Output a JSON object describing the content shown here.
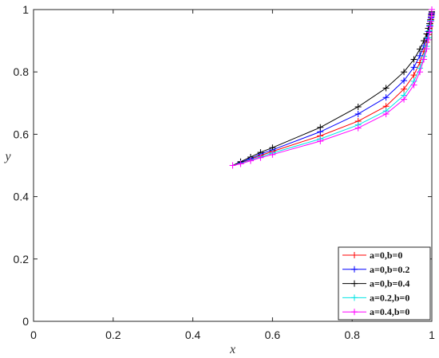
{
  "chart_data": {
    "type": "line",
    "xlabel": "x",
    "ylabel": "y",
    "xlim": [
      0,
      1
    ],
    "ylim": [
      0,
      1
    ],
    "xticks": [
      "0",
      "0.2",
      "0.4",
      "0.6",
      "0.8",
      "1"
    ],
    "yticks": [
      "0",
      "0.2",
      "0.4",
      "0.6",
      "0.8",
      "1"
    ],
    "grid": false,
    "legend_position": "bottom-right",
    "marker": "plus",
    "series": [
      {
        "name": "a=0,b=0",
        "color": "#ff0000",
        "x": [
          0.5,
          0.52,
          0.545,
          0.57,
          0.6,
          0.72,
          0.815,
          0.885,
          0.93,
          0.955,
          0.97,
          0.98,
          0.987,
          0.991,
          0.994,
          0.996,
          0.998,
          0.999,
          1.0,
          1.0
        ],
        "y": [
          0.5,
          0.508,
          0.52,
          0.532,
          0.545,
          0.595,
          0.642,
          0.69,
          0.745,
          0.79,
          0.83,
          0.865,
          0.895,
          0.92,
          0.94,
          0.955,
          0.968,
          0.98,
          0.99,
          1.0
        ]
      },
      {
        "name": "a=0,b=0.2",
        "color": "#0000ff",
        "x": [
          0.5,
          0.52,
          0.545,
          0.57,
          0.6,
          0.72,
          0.815,
          0.885,
          0.93,
          0.955,
          0.97,
          0.98,
          0.987,
          0.991,
          0.994,
          0.996,
          0.998,
          0.999,
          1.0,
          1.0
        ],
        "y": [
          0.5,
          0.51,
          0.522,
          0.537,
          0.55,
          0.608,
          0.665,
          0.718,
          0.772,
          0.815,
          0.852,
          0.883,
          0.908,
          0.93,
          0.948,
          0.962,
          0.973,
          0.983,
          0.992,
          1.0
        ]
      },
      {
        "name": "a=0,b=0.4",
        "color": "#000000",
        "x": [
          0.5,
          0.52,
          0.545,
          0.57,
          0.6,
          0.72,
          0.815,
          0.885,
          0.93,
          0.955,
          0.97,
          0.98,
          0.987,
          0.991,
          0.994,
          0.996,
          0.998,
          0.999,
          1.0,
          1.0
        ],
        "y": [
          0.5,
          0.512,
          0.527,
          0.542,
          0.557,
          0.622,
          0.688,
          0.748,
          0.8,
          0.84,
          0.873,
          0.9,
          0.922,
          0.94,
          0.955,
          0.967,
          0.977,
          0.986,
          0.993,
          1.0
        ]
      },
      {
        "name": "a=0.2,b=0",
        "color": "#00e5e5",
        "x": [
          0.5,
          0.52,
          0.545,
          0.57,
          0.6,
          0.72,
          0.815,
          0.885,
          0.93,
          0.955,
          0.97,
          0.98,
          0.987,
          0.991,
          0.994,
          0.996,
          0.998,
          0.999,
          1.0,
          1.0
        ],
        "y": [
          0.5,
          0.506,
          0.517,
          0.528,
          0.54,
          0.585,
          0.63,
          0.675,
          0.725,
          0.77,
          0.812,
          0.85,
          0.882,
          0.91,
          0.932,
          0.95,
          0.965,
          0.978,
          0.989,
          1.0
        ]
      },
      {
        "name": "a=0.4,b=0",
        "color": "#ff00ff",
        "x": [
          0.5,
          0.52,
          0.545,
          0.57,
          0.6,
          0.72,
          0.815,
          0.885,
          0.93,
          0.955,
          0.97,
          0.98,
          0.987,
          0.991,
          0.994,
          0.996,
          0.998,
          0.999,
          1.0,
          1.0
        ],
        "y": [
          0.5,
          0.505,
          0.515,
          0.525,
          0.535,
          0.578,
          0.62,
          0.665,
          0.712,
          0.758,
          0.8,
          0.84,
          0.874,
          0.903,
          0.927,
          0.946,
          0.962,
          0.976,
          0.988,
          1.0
        ]
      }
    ]
  }
}
